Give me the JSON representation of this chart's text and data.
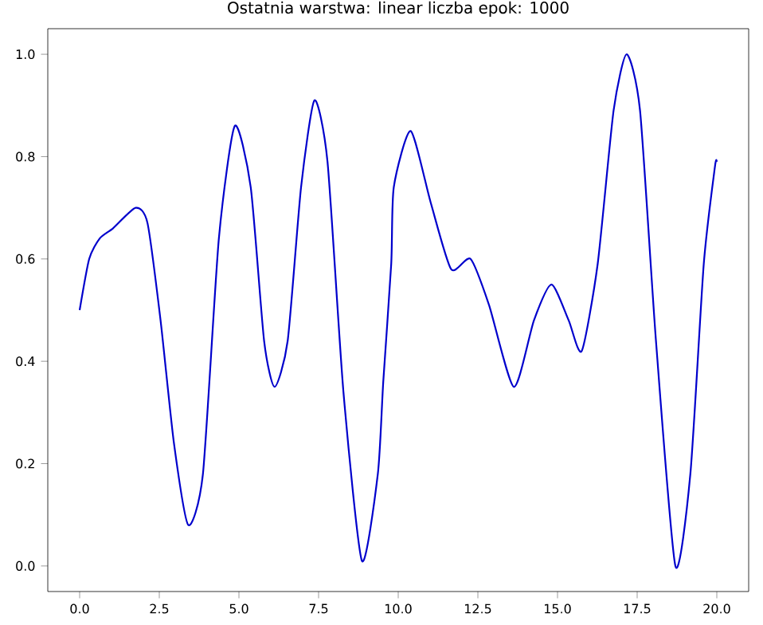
{
  "chart_data": {
    "type": "line",
    "title": "Ostatnia warstwa: linear        liczba epok: 1000",
    "x": [
      0,
      0.3,
      0.63,
      1.05,
      1.76,
      2.13,
      2.54,
      2.96,
      3.41,
      3.87,
      4.37,
      4.87,
      5.37,
      5.79,
      6.12,
      6.53,
      6.95,
      7.37,
      7.78,
      8.28,
      8.86,
      9.36,
      9.53,
      9.78,
      9.86,
      10.39,
      11.02,
      11.66,
      12.27,
      12.85,
      13.63,
      14.26,
      14.81,
      15.35,
      15.76,
      16.26,
      16.76,
      17.17,
      17.59,
      18.09,
      18.7,
      19.17,
      19.59,
      19.94,
      20
    ],
    "series": [
      {
        "color": "#0000cc",
        "values": [
          0.5,
          0.6,
          0.64,
          0.66,
          0.7,
          0.67,
          0.48,
          0.24,
          0.08,
          0.18,
          0.64,
          0.86,
          0.74,
          0.44,
          0.35,
          0.44,
          0.74,
          0.91,
          0.79,
          0.34,
          0.01,
          0.18,
          0.36,
          0.59,
          0.74,
          0.85,
          0.71,
          0.58,
          0.6,
          0.51,
          0.35,
          0.48,
          0.55,
          0.48,
          0.42,
          0.59,
          0.89,
          1.0,
          0.89,
          0.44,
          0.0,
          0.18,
          0.59,
          0.78,
          0.79
        ]
      }
    ],
    "xlim": [
      -1,
      21
    ],
    "ylim": [
      -0.05,
      1.05
    ],
    "xticks": [
      {
        "value": 0,
        "label": "0.0"
      },
      {
        "value": 2.5,
        "label": "2.5"
      },
      {
        "value": 5,
        "label": "5.0"
      },
      {
        "value": 7.5,
        "label": "7.5"
      },
      {
        "value": 10,
        "label": "10.0"
      },
      {
        "value": 12.5,
        "label": "12.5"
      },
      {
        "value": 15,
        "label": "15.0"
      },
      {
        "value": 17.5,
        "label": "17.5"
      },
      {
        "value": 20,
        "label": "20.0"
      }
    ],
    "yticks": [
      {
        "value": 0,
        "label": "0.0"
      },
      {
        "value": 0.2,
        "label": "0.2"
      },
      {
        "value": 0.4,
        "label": "0.4"
      },
      {
        "value": 0.6,
        "label": "0.6"
      },
      {
        "value": 0.8,
        "label": "0.8"
      },
      {
        "value": 1,
        "label": "1.0"
      }
    ],
    "grid": false,
    "marker": "none",
    "line_style": "solid"
  }
}
